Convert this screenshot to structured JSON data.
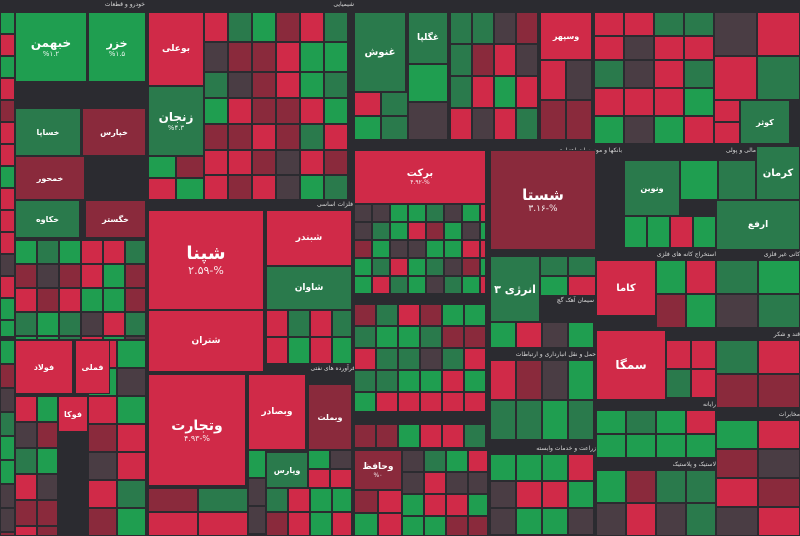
{
  "colors": {
    "background": "#2b2b30",
    "strong_up": "#1f9e50",
    "up": "#2a7a4c",
    "neutral": "#4a3d44",
    "down": "#8a2a3c",
    "strong_down": "#d02a48"
  },
  "chart_data": {
    "type": "treemap",
    "sectors": [
      {
        "name": "خودرو و قطعات"
      },
      {
        "name": "شیمیایی"
      },
      {
        "name": "فلزات اساسی"
      },
      {
        "name": "فرآورده های نفتی"
      },
      {
        "name": "بانکها و موسسات اعتباری"
      },
      {
        "name": "واسطه گری های مالی و پولی"
      },
      {
        "name": "استخراج کانه های فلزی"
      },
      {
        "name": "سیمان آهک گچ"
      },
      {
        "name": "بیمه و صندوق"
      },
      {
        "name": "حمل و نقل انبارداری و ارتباطات"
      },
      {
        "name": "زراعت و خدمات وابسته"
      },
      {
        "name": "قند و شکر"
      },
      {
        "name": "رایانه"
      },
      {
        "name": "لاستیک و پلاستیک"
      },
      {
        "name": "مخابرات"
      },
      {
        "name": "کانی غیر فلزی"
      }
    ],
    "tiles": [
      {
        "symbol": "خبهمن",
        "change": "%۱.۲"
      },
      {
        "symbol": "خزر",
        "change": "%۱.۵"
      },
      {
        "symbol": "خپارس",
        "change": ""
      },
      {
        "symbol": "خساپا",
        "change": ""
      },
      {
        "symbol": "خمحور",
        "change": ""
      },
      {
        "symbol": "خکاوه",
        "change": ""
      },
      {
        "symbol": "خگستر",
        "change": ""
      },
      {
        "symbol": "بوعلی",
        "change": ""
      },
      {
        "symbol": "زنجان",
        "change": "%۴.۳"
      },
      {
        "symbol": "شپنا",
        "change": "%-۲.۵۹"
      },
      {
        "symbol": "شبندر",
        "change": ""
      },
      {
        "symbol": "شتران",
        "change": ""
      },
      {
        "symbol": "شاوان",
        "change": ""
      },
      {
        "symbol": "وتجارت",
        "change": "%-۴.۹۳"
      },
      {
        "symbol": "وبصادر",
        "change": ""
      },
      {
        "symbol": "وبملت",
        "change": ""
      },
      {
        "symbol": "وپارس",
        "change": ""
      },
      {
        "symbol": "فملی",
        "change": ""
      },
      {
        "symbol": "فولاد",
        "change": ""
      },
      {
        "symbol": "فوکا",
        "change": ""
      },
      {
        "symbol": "شستا",
        "change": "%-۳.۱۶"
      },
      {
        "symbol": "برکت",
        "change": "%-۴.۹۲"
      },
      {
        "symbol": "انرژی ۳",
        "change": ""
      },
      {
        "symbol": "کاما",
        "change": ""
      },
      {
        "symbol": "سمگا",
        "change": ""
      },
      {
        "symbol": "وحافظ",
        "change": "%۰"
      },
      {
        "symbol": "غنوش",
        "change": ""
      },
      {
        "symbol": "غگلپا",
        "change": ""
      },
      {
        "symbol": "وسپهر",
        "change": ""
      },
      {
        "symbol": "کرمان",
        "change": ""
      },
      {
        "symbol": "ارفع",
        "change": ""
      },
      {
        "symbol": "کوثر",
        "change": ""
      },
      {
        "symbol": "ونوین",
        "change": ""
      }
    ]
  }
}
